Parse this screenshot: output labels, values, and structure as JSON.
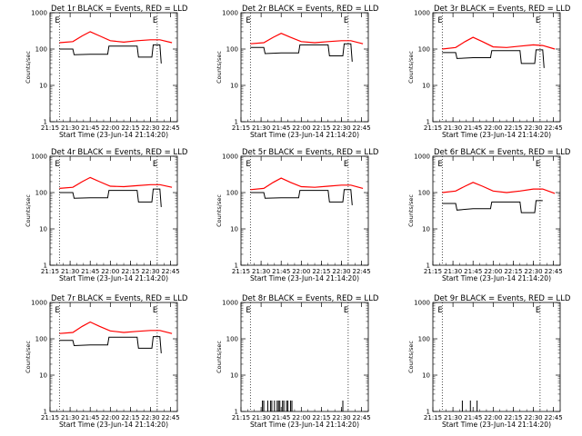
{
  "chart_data": [
    {
      "type": "line",
      "log_y": true,
      "title": "Det 1r BLACK = Events, RED = LLD",
      "xlabel": "Start Time (23-Jun-14 21:14:20)",
      "ylabel": "Counts/sec",
      "xlim": [
        "21:15",
        "22:50"
      ],
      "ylim": [
        1,
        1000
      ],
      "x_ticks": [
        "21:15",
        "21:30",
        "21:45",
        "22:00",
        "22:15",
        "22:30",
        "22:45"
      ],
      "y_ticks": [
        "1",
        "10",
        "100",
        "1000"
      ],
      "markers": [
        {
          "label": "E",
          "time": "21:22"
        },
        {
          "label": "E",
          "time": "22:35"
        }
      ],
      "series": [
        {
          "name": "Events",
          "color": "#000000",
          "points": [
            [
              "21:22",
              100
            ],
            [
              "21:32",
              100
            ],
            [
              "21:33",
              70
            ],
            [
              "21:45",
              72
            ],
            [
              "21:58",
              72
            ],
            [
              "21:59",
              120
            ],
            [
              "22:20",
              120
            ],
            [
              "22:21",
              60
            ],
            [
              "22:31",
              60
            ],
            [
              "22:32",
              130
            ],
            [
              "22:37",
              130
            ],
            [
              "22:38",
              40
            ]
          ]
        },
        {
          "name": "LLD",
          "color": "#ff0000",
          "points": [
            [
              "21:22",
              150
            ],
            [
              "21:32",
              160
            ],
            [
              "21:39",
              230
            ],
            [
              "21:45",
              300
            ],
            [
              "21:52",
              230
            ],
            [
              "22:00",
              170
            ],
            [
              "22:10",
              155
            ],
            [
              "22:20",
              170
            ],
            [
              "22:30",
              180
            ],
            [
              "22:37",
              180
            ],
            [
              "22:46",
              150
            ]
          ]
        }
      ]
    },
    {
      "type": "line",
      "log_y": true,
      "title": "Det 2r BLACK = Events, RED = LLD",
      "xlabel": "Start Time (23-Jun-14 21:14:20)",
      "ylabel": "Counts/sec",
      "xlim": [
        "21:15",
        "22:50"
      ],
      "ylim": [
        1,
        1000
      ],
      "x_ticks": [
        "21:15",
        "21:30",
        "21:45",
        "22:00",
        "22:15",
        "22:30",
        "22:45"
      ],
      "y_ticks": [
        "1",
        "10",
        "100",
        "1000"
      ],
      "markers": [
        {
          "label": "E",
          "time": "21:22"
        },
        {
          "label": "E",
          "time": "22:35"
        }
      ],
      "series": [
        {
          "name": "Events",
          "color": "#000000",
          "points": [
            [
              "21:22",
              110
            ],
            [
              "21:32",
              110
            ],
            [
              "21:33",
              75
            ],
            [
              "21:45",
              78
            ],
            [
              "21:58",
              78
            ],
            [
              "21:59",
              130
            ],
            [
              "22:20",
              130
            ],
            [
              "22:21",
              65
            ],
            [
              "22:31",
              65
            ],
            [
              "22:32",
              140
            ],
            [
              "22:37",
              140
            ],
            [
              "22:38",
              45
            ]
          ]
        },
        {
          "name": "LLD",
          "color": "#ff0000",
          "points": [
            [
              "21:22",
              140
            ],
            [
              "21:32",
              150
            ],
            [
              "21:39",
              210
            ],
            [
              "21:45",
              270
            ],
            [
              "21:52",
              210
            ],
            [
              "22:00",
              160
            ],
            [
              "22:10",
              150
            ],
            [
              "22:20",
              160
            ],
            [
              "22:30",
              170
            ],
            [
              "22:37",
              170
            ],
            [
              "22:46",
              140
            ]
          ]
        }
      ]
    },
    {
      "type": "line",
      "log_y": true,
      "title": "Det 3r BLACK = Events, RED = LLD",
      "xlabel": "Start Time (23-Jun-14 21:14:20)",
      "ylabel": "Counts/sec",
      "xlim": [
        "21:15",
        "22:50"
      ],
      "ylim": [
        1,
        1000
      ],
      "x_ticks": [
        "21:15",
        "21:30",
        "21:45",
        "22:00",
        "22:15",
        "22:30",
        "22:45"
      ],
      "y_ticks": [
        "1",
        "10",
        "100",
        "1000"
      ],
      "markers": [
        {
          "label": "E",
          "time": "21:22"
        },
        {
          "label": "E",
          "time": "22:35"
        }
      ],
      "series": [
        {
          "name": "Events",
          "color": "#000000",
          "points": [
            [
              "21:22",
              80
            ],
            [
              "21:32",
              80
            ],
            [
              "21:33",
              55
            ],
            [
              "21:45",
              58
            ],
            [
              "21:58",
              58
            ],
            [
              "21:59",
              90
            ],
            [
              "22:20",
              90
            ],
            [
              "22:21",
              40
            ],
            [
              "22:31",
              40
            ],
            [
              "22:32",
              95
            ],
            [
              "22:37",
              95
            ],
            [
              "22:38",
              30
            ]
          ]
        },
        {
          "name": "LLD",
          "color": "#ff0000",
          "points": [
            [
              "21:22",
              100
            ],
            [
              "21:32",
              110
            ],
            [
              "21:39",
              160
            ],
            [
              "21:45",
              210
            ],
            [
              "21:52",
              160
            ],
            [
              "22:00",
              115
            ],
            [
              "22:10",
              110
            ],
            [
              "22:20",
              120
            ],
            [
              "22:30",
              130
            ],
            [
              "22:37",
              125
            ],
            [
              "22:46",
              100
            ]
          ]
        }
      ]
    },
    {
      "type": "line",
      "log_y": true,
      "title": "Det 4r BLACK = Events, RED = LLD",
      "xlabel": "Start Time (23-Jun-14 21:14:20)",
      "ylabel": "Counts/sec",
      "xlim": [
        "21:15",
        "22:50"
      ],
      "ylim": [
        1,
        1000
      ],
      "x_ticks": [
        "21:15",
        "21:30",
        "21:45",
        "22:00",
        "22:15",
        "22:30",
        "22:45"
      ],
      "y_ticks": [
        "1",
        "10",
        "100",
        "1000"
      ],
      "markers": [
        {
          "label": "E",
          "time": "21:22"
        },
        {
          "label": "E",
          "time": "22:35"
        }
      ],
      "series": [
        {
          "name": "Events",
          "color": "#000000",
          "points": [
            [
              "21:22",
              100
            ],
            [
              "21:32",
              100
            ],
            [
              "21:33",
              70
            ],
            [
              "21:45",
              72
            ],
            [
              "21:58",
              72
            ],
            [
              "21:59",
              115
            ],
            [
              "22:20",
              115
            ],
            [
              "22:21",
              55
            ],
            [
              "22:31",
              55
            ],
            [
              "22:32",
              125
            ],
            [
              "22:37",
              125
            ],
            [
              "22:38",
              40
            ]
          ]
        },
        {
          "name": "LLD",
          "color": "#ff0000",
          "points": [
            [
              "21:22",
              130
            ],
            [
              "21:32",
              140
            ],
            [
              "21:39",
              200
            ],
            [
              "21:45",
              260
            ],
            [
              "21:52",
              200
            ],
            [
              "22:00",
              150
            ],
            [
              "22:10",
              145
            ],
            [
              "22:20",
              155
            ],
            [
              "22:30",
              165
            ],
            [
              "22:37",
              165
            ],
            [
              "22:46",
              140
            ]
          ]
        }
      ]
    },
    {
      "type": "line",
      "log_y": true,
      "title": "Det 5r BLACK = Events, RED = LLD",
      "xlabel": "Start Time (23-Jun-14 21:14:20)",
      "ylabel": "Counts/sec",
      "xlim": [
        "21:15",
        "22:50"
      ],
      "ylim": [
        1,
        1000
      ],
      "x_ticks": [
        "21:15",
        "21:30",
        "21:45",
        "22:00",
        "22:15",
        "22:30",
        "22:45"
      ],
      "y_ticks": [
        "1",
        "10",
        "100",
        "1000"
      ],
      "markers": [
        {
          "label": "E",
          "time": "21:22"
        },
        {
          "label": "E",
          "time": "22:35"
        }
      ],
      "series": [
        {
          "name": "Events",
          "color": "#000000",
          "points": [
            [
              "21:22",
              100
            ],
            [
              "21:32",
              100
            ],
            [
              "21:33",
              70
            ],
            [
              "21:45",
              72
            ],
            [
              "21:58",
              72
            ],
            [
              "21:59",
              115
            ],
            [
              "22:20",
              115
            ],
            [
              "22:21",
              55
            ],
            [
              "22:31",
              55
            ],
            [
              "22:32",
              120
            ],
            [
              "22:37",
              120
            ],
            [
              "22:38",
              45
            ]
          ]
        },
        {
          "name": "LLD",
          "color": "#ff0000",
          "points": [
            [
              "21:22",
              120
            ],
            [
              "21:32",
              130
            ],
            [
              "21:39",
              190
            ],
            [
              "21:45",
              250
            ],
            [
              "21:52",
              190
            ],
            [
              "22:00",
              145
            ],
            [
              "22:10",
              140
            ],
            [
              "22:20",
              150
            ],
            [
              "22:30",
              160
            ],
            [
              "22:37",
              160
            ],
            [
              "22:46",
              130
            ]
          ]
        }
      ]
    },
    {
      "type": "line",
      "log_y": true,
      "title": "Det 6r BLACK = Events, RED = LLD",
      "xlabel": "Start Time (23-Jun-14 21:14:20)",
      "ylabel": "Counts/sec",
      "xlim": [
        "21:15",
        "22:50"
      ],
      "ylim": [
        1,
        1000
      ],
      "x_ticks": [
        "21:15",
        "21:30",
        "21:45",
        "22:00",
        "22:15",
        "22:30",
        "22:45"
      ],
      "y_ticks": [
        "1",
        "10",
        "100",
        "1000"
      ],
      "markers": [
        {
          "label": "E",
          "time": "21:22"
        },
        {
          "label": "E",
          "time": "22:35"
        }
      ],
      "series": [
        {
          "name": "Events",
          "color": "#000000",
          "points": [
            [
              "21:22",
              50
            ],
            [
              "21:32",
              50
            ],
            [
              "21:33",
              33
            ],
            [
              "21:45",
              36
            ],
            [
              "21:58",
              36
            ],
            [
              "21:59",
              55
            ],
            [
              "22:20",
              55
            ],
            [
              "22:21",
              28
            ],
            [
              "22:31",
              28
            ],
            [
              "22:32",
              60
            ],
            [
              "22:37",
              60
            ]
          ]
        },
        {
          "name": "LLD",
          "color": "#ff0000",
          "points": [
            [
              "21:22",
              100
            ],
            [
              "21:32",
              110
            ],
            [
              "21:39",
              150
            ],
            [
              "21:45",
              190
            ],
            [
              "21:52",
              150
            ],
            [
              "22:00",
              110
            ],
            [
              "22:10",
              100
            ],
            [
              "22:20",
              110
            ],
            [
              "22:30",
              125
            ],
            [
              "22:37",
              125
            ],
            [
              "22:46",
              95
            ]
          ]
        }
      ]
    },
    {
      "type": "line",
      "log_y": true,
      "title": "Det 7r BLACK = Events, RED = LLD",
      "xlabel": "Start Time (23-Jun-14 21:14:20)",
      "ylabel": "Counts/sec",
      "xlim": [
        "21:15",
        "22:50"
      ],
      "ylim": [
        1,
        1000
      ],
      "x_ticks": [
        "21:15",
        "21:30",
        "21:45",
        "22:00",
        "22:15",
        "22:30",
        "22:45"
      ],
      "y_ticks": [
        "1",
        "10",
        "100",
        "1000"
      ],
      "markers": [
        {
          "label": "E",
          "time": "21:22"
        },
        {
          "label": "E",
          "time": "22:35"
        }
      ],
      "series": [
        {
          "name": "Events",
          "color": "#000000",
          "points": [
            [
              "21:22",
              90
            ],
            [
              "21:32",
              90
            ],
            [
              "21:33",
              65
            ],
            [
              "21:45",
              68
            ],
            [
              "21:58",
              68
            ],
            [
              "21:59",
              110
            ],
            [
              "22:20",
              110
            ],
            [
              "22:21",
              55
            ],
            [
              "22:31",
              55
            ],
            [
              "22:32",
              115
            ],
            [
              "22:37",
              115
            ],
            [
              "22:38",
              40
            ]
          ]
        },
        {
          "name": "LLD",
          "color": "#ff0000",
          "points": [
            [
              "21:22",
              140
            ],
            [
              "21:32",
              150
            ],
            [
              "21:39",
              220
            ],
            [
              "21:45",
              290
            ],
            [
              "21:52",
              220
            ],
            [
              "22:00",
              165
            ],
            [
              "22:10",
              150
            ],
            [
              "22:20",
              160
            ],
            [
              "22:30",
              170
            ],
            [
              "22:37",
              170
            ],
            [
              "22:46",
              140
            ]
          ]
        }
      ]
    },
    {
      "type": "line",
      "log_y": true,
      "title": "Det 8r BLACK = Events, RED = LLD",
      "xlabel": "Start Time (23-Jun-14 21:14:20)",
      "ylabel": "Counts/sec",
      "xlim": [
        "21:15",
        "22:50"
      ],
      "ylim": [
        1,
        1000
      ],
      "x_ticks": [
        "21:15",
        "21:30",
        "21:45",
        "22:00",
        "22:15",
        "22:30",
        "22:45"
      ],
      "y_ticks": [
        "1",
        "10",
        "100",
        "1000"
      ],
      "markers": [
        {
          "label": "E",
          "time": "21:22"
        },
        {
          "label": "E",
          "time": "22:35"
        }
      ],
      "spikes": {
        "baseline": 1,
        "height": 2,
        "times": [
          "21:31",
          "21:32",
          "21:35",
          "21:37",
          "21:38",
          "21:40",
          "21:42",
          "21:43",
          "21:44",
          "21:46",
          "21:47",
          "21:49",
          "21:50",
          "21:52",
          "21:53",
          "22:31"
        ]
      },
      "series": []
    },
    {
      "type": "line",
      "log_y": true,
      "title": "Det 9r BLACK = Events, RED = LLD",
      "xlabel": "Start Time (23-Jun-14 21:14:20)",
      "ylabel": "Counts/sec",
      "xlim": [
        "21:15",
        "22:50"
      ],
      "ylim": [
        1,
        1000
      ],
      "x_ticks": [
        "21:15",
        "21:30",
        "21:45",
        "22:00",
        "22:15",
        "22:30",
        "22:45"
      ],
      "y_ticks": [
        "1",
        "10",
        "100",
        "1000"
      ],
      "markers": [
        {
          "label": "E",
          "time": "21:22"
        },
        {
          "label": "E",
          "time": "22:35"
        }
      ],
      "spikes": {
        "baseline": 1,
        "height": 2,
        "times": [
          "21:37",
          "21:43",
          "21:48"
        ]
      },
      "series": []
    }
  ]
}
